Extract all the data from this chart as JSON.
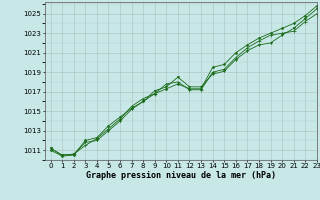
{
  "title": "Graphe pression niveau de la mer (hPa)",
  "bg_color": "#c8e8e8",
  "grid_color": "#b0c8c8",
  "line_color": "#1a6b1a",
  "xlim": [
    -0.5,
    23
  ],
  "ylim": [
    1010.0,
    1026.2
  ],
  "xticks": [
    0,
    1,
    2,
    3,
    4,
    5,
    6,
    7,
    8,
    9,
    10,
    11,
    12,
    13,
    14,
    15,
    16,
    17,
    18,
    19,
    20,
    21,
    22,
    23
  ],
  "yticks": [
    1011,
    1013,
    1015,
    1017,
    1019,
    1021,
    1023,
    1025
  ],
  "series1_x": [
    0,
    1,
    2,
    3,
    4,
    5,
    6,
    7,
    8,
    9,
    10,
    11,
    12,
    13,
    14,
    15,
    16,
    17,
    18,
    19,
    20,
    21,
    22,
    23
  ],
  "series1_y": [
    1011.2,
    1010.5,
    1010.6,
    1011.8,
    1012.0,
    1013.0,
    1014.0,
    1015.2,
    1016.0,
    1017.1,
    1017.5,
    1018.5,
    1017.5,
    1017.5,
    1018.8,
    1019.1,
    1020.3,
    1021.2,
    1021.8,
    1022.0,
    1022.8,
    1023.5,
    1024.5,
    1025.5
  ],
  "series2_x": [
    0,
    1,
    2,
    3,
    4,
    5,
    6,
    7,
    8,
    9,
    10,
    11,
    12,
    13,
    14,
    15,
    16,
    17,
    18,
    19,
    20,
    21,
    22,
    23
  ],
  "series2_y": [
    1011.2,
    1010.5,
    1010.6,
    1011.5,
    1012.2,
    1013.2,
    1014.2,
    1015.5,
    1016.3,
    1016.8,
    1017.8,
    1018.0,
    1017.2,
    1017.2,
    1019.0,
    1019.3,
    1020.5,
    1021.5,
    1022.2,
    1022.8,
    1023.0,
    1023.2,
    1024.2,
    1025.0
  ],
  "series3_x": [
    0,
    1,
    2,
    3,
    4,
    5,
    6,
    7,
    8,
    9,
    10,
    11,
    12,
    13,
    14,
    15,
    16,
    17,
    18,
    19,
    20,
    21,
    22,
    23
  ],
  "series3_y": [
    1011.0,
    1010.4,
    1010.5,
    1012.0,
    1012.3,
    1013.5,
    1014.4,
    1015.3,
    1016.0,
    1016.8,
    1017.3,
    1017.8,
    1017.3,
    1017.3,
    1019.5,
    1019.8,
    1021.0,
    1021.8,
    1022.5,
    1023.0,
    1023.5,
    1024.0,
    1024.8,
    1025.8
  ],
  "tick_fontsize": 5,
  "label_fontsize": 6,
  "lw": 0.6,
  "ms": 1.8
}
